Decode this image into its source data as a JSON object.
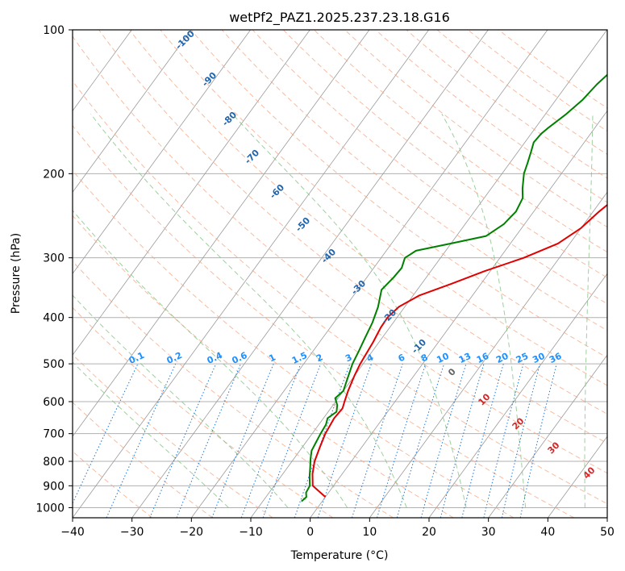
{
  "chart_data": {
    "type": "line",
    "title": "wetPf2_PAZ1.2025.237.23.18.G16",
    "xlabel": "Temperature (°C)",
    "ylabel": "Pressure (hPa)",
    "xlim": [
      -40,
      50
    ],
    "ylim": [
      1050,
      100
    ],
    "y_scale": "log",
    "grid": true,
    "x_ticks": [
      -40,
      -30,
      -20,
      -10,
      0,
      10,
      20,
      30,
      40,
      50
    ],
    "x_tick_labels": [
      "−40",
      "−30",
      "−20",
      "−10",
      "0",
      "10",
      "20",
      "30",
      "40",
      "50"
    ],
    "y_ticks": [
      1000,
      900,
      800,
      700,
      600,
      500,
      400,
      300,
      200,
      100
    ],
    "y_tick_labels": [
      "1000",
      "900",
      "800",
      "700",
      "600",
      "500",
      "400",
      "300",
      "200",
      "100"
    ],
    "series": [
      {
        "color": "#e00000",
        "points": [
          [
            950,
            0
          ],
          [
            900,
            -3.5
          ],
          [
            850,
            -5
          ],
          [
            800,
            -6.2
          ],
          [
            750,
            -7
          ],
          [
            700,
            -7.8
          ],
          [
            650,
            -8.2
          ],
          [
            620,
            -8
          ],
          [
            600,
            -8.5
          ],
          [
            570,
            -9.2
          ],
          [
            530,
            -10
          ],
          [
            500,
            -10.5
          ],
          [
            450,
            -11
          ],
          [
            420,
            -11.5
          ],
          [
            400,
            -11.6
          ],
          [
            380,
            -11
          ],
          [
            360,
            -9
          ],
          [
            340,
            -5
          ],
          [
            320,
            -1
          ],
          [
            300,
            4
          ],
          [
            280,
            8
          ],
          [
            260,
            10
          ],
          [
            240,
            11
          ],
          [
            220,
            12.5
          ],
          [
            200,
            13.5
          ],
          [
            180,
            15
          ],
          [
            160,
            17
          ],
          [
            140,
            20
          ],
          [
            125,
            23
          ],
          [
            110,
            25.5
          ],
          [
            100,
            27
          ]
        ]
      },
      {
        "color": "#008000",
        "points": [
          [
            970,
            -3.5
          ],
          [
            950,
            -3.2
          ],
          [
            930,
            -3.8
          ],
          [
            900,
            -4
          ],
          [
            860,
            -5.2
          ],
          [
            820,
            -6.3
          ],
          [
            790,
            -7.2
          ],
          [
            760,
            -8
          ],
          [
            730,
            -8.3
          ],
          [
            700,
            -8.6
          ],
          [
            670,
            -8.8
          ],
          [
            650,
            -9.3
          ],
          [
            630,
            -8.6
          ],
          [
            610,
            -9.3
          ],
          [
            590,
            -10.5
          ],
          [
            570,
            -10
          ],
          [
            550,
            -10.5
          ],
          [
            530,
            -11
          ],
          [
            500,
            -11.8
          ],
          [
            470,
            -12.3
          ],
          [
            440,
            -12.9
          ],
          [
            410,
            -13.5
          ],
          [
            380,
            -14.5
          ],
          [
            350,
            -16
          ],
          [
            330,
            -15.5
          ],
          [
            315,
            -15.3
          ],
          [
            300,
            -16
          ],
          [
            290,
            -15
          ],
          [
            280,
            -10
          ],
          [
            270,
            -5
          ],
          [
            255,
            -3.5
          ],
          [
            240,
            -3
          ],
          [
            225,
            -3.5
          ],
          [
            215,
            -4.7
          ],
          [
            200,
            -6.3
          ],
          [
            190,
            -7
          ],
          [
            180,
            -7.8
          ],
          [
            172,
            -8.5
          ],
          [
            165,
            -8.3
          ],
          [
            160,
            -7.8
          ],
          [
            150,
            -6.5
          ],
          [
            140,
            -5.5
          ],
          [
            130,
            -5
          ],
          [
            120,
            -4
          ],
          [
            110,
            -2.8
          ],
          [
            100,
            -1.5
          ]
        ]
      }
    ],
    "dry_adiabat_labels": [
      "-100",
      "-90",
      "-80",
      "-70",
      "-60",
      "-50",
      "-40",
      "-30",
      "-20",
      "-10"
    ],
    "mixing_ratio_labels": [
      "0.1",
      "0.2",
      "0.4",
      "0.6",
      "1",
      "1.5",
      "2",
      "3",
      "4",
      "6",
      "8",
      "10",
      "13",
      "16",
      "20",
      "25",
      "30",
      "36"
    ],
    "moist_adiabat_labels": [
      "0",
      "10",
      "20",
      "30",
      "40"
    ],
    "colors": {
      "temperature": "#e00000",
      "dewpoint": "#008000",
      "isotherm": "#9a9a9a",
      "dry_adiabat": "#f4a582",
      "moist_adiabat": "#7fbf7f",
      "mixing_ratio": "#1f77d4",
      "dry_adiabat_label": "#2166ac",
      "mixing_ratio_label": "#1e90ff",
      "moist_adiabat_label": "#d62728"
    }
  }
}
